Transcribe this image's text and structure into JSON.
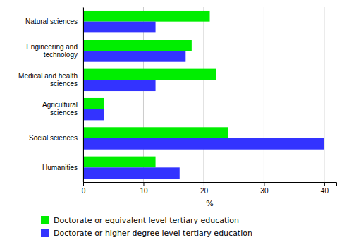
{
  "chart_data": {
    "type": "bar",
    "orientation": "horizontal",
    "categories": [
      "Humanities",
      "Social sciences",
      "Agricultural\nsciences",
      "Medical and health\nsciences",
      "Engineering and\ntechnology",
      "Natural sciences"
    ],
    "series": [
      {
        "name": "Doctorate or equivalent level  tertiary education",
        "color": "#00EE00",
        "values": [
          12,
          24,
          3.5,
          22,
          18,
          21
        ]
      },
      {
        "name": "Doctorate or higher-degree level tertiary education",
        "color": "#3333FF",
        "values": [
          16,
          40,
          3.5,
          12,
          17,
          12
        ]
      }
    ],
    "xlim": [
      0,
      42
    ],
    "xticks": [
      0,
      10,
      20,
      30,
      40
    ],
    "xlabel": "%",
    "grid": true,
    "legend": "bottom"
  }
}
